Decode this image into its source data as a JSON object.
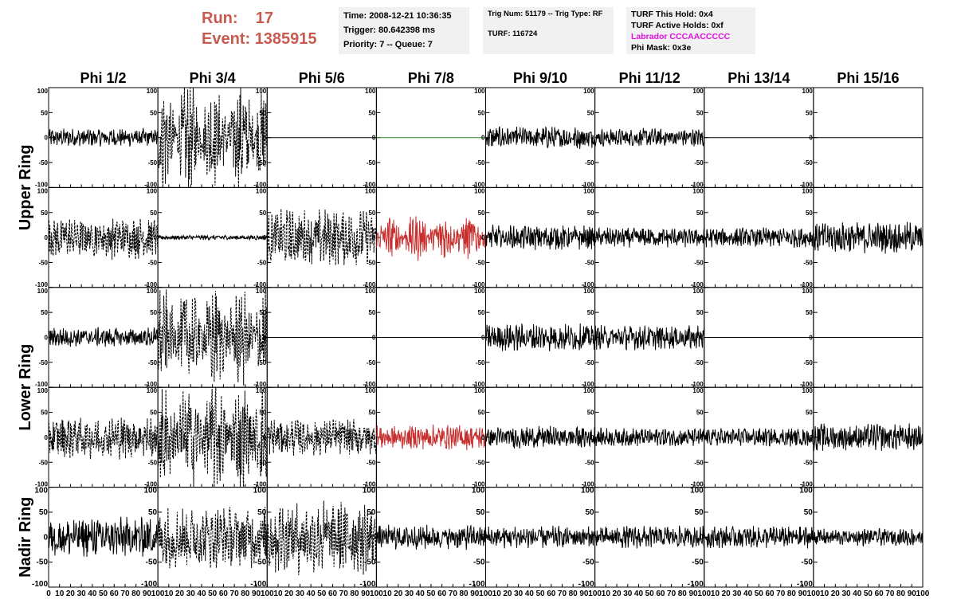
{
  "header": {
    "run_label": "Run:",
    "run_value": "17",
    "event_label": "Event:",
    "event_value": "1385915"
  },
  "info_time": {
    "time": "Time: 2008-12-21 10:36:35",
    "trigger": "Trigger: 80.642398 ms",
    "priority": "Priority: 7 -- Queue: 7"
  },
  "info_trig": {
    "trig": "Trig Num: 51179 -- Trig Type: RF",
    "turf": "TURF: 116724"
  },
  "info_turf": {
    "hold": "TURF This Hold: 0x4",
    "active": "TURF Active Holds: 0xf",
    "labrador": "Labrador CCCAACCCCC",
    "phimask": "Phi Mask: 0x3e"
  },
  "chart_data": {
    "type": "line",
    "columns": [
      "Phi 1/2",
      "Phi 3/4",
      "Phi 5/6",
      "Phi 7/8",
      "Phi 9/10",
      "Phi 11/12",
      "Phi 13/14",
      "Phi 15/16"
    ],
    "row_labels": [
      {
        "label": "Upper Ring",
        "rows": [
          0,
          1
        ]
      },
      {
        "label": "Lower Ring",
        "rows": [
          2,
          3
        ]
      },
      {
        "label": "Nadir Ring",
        "rows": [
          4
        ]
      }
    ],
    "xlim": [
      0,
      100
    ],
    "ylim": [
      -100,
      100
    ],
    "x_tick_labels": [
      "0",
      "10",
      "20",
      "30",
      "40",
      "50",
      "60",
      "70",
      "80",
      "90",
      "100"
    ],
    "y_tick_labels": [
      "100",
      "50",
      "0",
      "-50",
      "-100"
    ],
    "colors": {
      "normal": "#000000",
      "triggered": "#c83030",
      "flat": "#2a8a2a"
    },
    "panels": [
      [
        {
          "style": "solid",
          "color": "normal",
          "amp": 15,
          "mod": "noise"
        },
        {
          "style": "dashed",
          "color": "normal",
          "amp": 90,
          "mod": "burst"
        },
        {
          "style": "flat",
          "color": "normal",
          "amp": 0
        },
        {
          "style": "flat",
          "color": "flat",
          "amp": 0
        },
        {
          "style": "solid",
          "color": "normal",
          "amp": 18,
          "mod": "noise"
        },
        {
          "style": "solid",
          "color": "normal",
          "amp": 15,
          "mod": "noise"
        },
        {
          "style": "flat",
          "color": "normal",
          "amp": 0
        },
        {
          "style": "flat",
          "color": "normal",
          "amp": 0
        }
      ],
      [
        {
          "style": "dashed",
          "color": "normal",
          "amp": 35,
          "mod": "noise"
        },
        {
          "style": "solid",
          "color": "normal",
          "amp": 4,
          "mod": "noise"
        },
        {
          "style": "dashed",
          "color": "normal",
          "amp": 45,
          "mod": "noise"
        },
        {
          "style": "solid",
          "color": "triggered",
          "amp": 40,
          "mod": "burst"
        },
        {
          "style": "solid",
          "color": "normal",
          "amp": 20,
          "mod": "noise"
        },
        {
          "style": "solid",
          "color": "normal",
          "amp": 16,
          "mod": "noise"
        },
        {
          "style": "solid",
          "color": "normal",
          "amp": 16,
          "mod": "noise"
        },
        {
          "style": "solid",
          "color": "normal",
          "amp": 25,
          "mod": "noise"
        }
      ],
      [
        {
          "style": "solid",
          "color": "normal",
          "amp": 16,
          "mod": "noise"
        },
        {
          "style": "dashed",
          "color": "normal",
          "amp": 85,
          "mod": "burst"
        },
        {
          "style": "flat",
          "color": "normal",
          "amp": 0
        },
        {
          "style": "flat",
          "color": "normal",
          "amp": 0
        },
        {
          "style": "solid",
          "color": "normal",
          "amp": 22,
          "mod": "noise"
        },
        {
          "style": "solid",
          "color": "normal",
          "amp": 20,
          "mod": "noise"
        },
        {
          "style": "flat",
          "color": "normal",
          "amp": 0
        },
        {
          "style": "flat",
          "color": "normal",
          "amp": 0
        }
      ],
      [
        {
          "style": "dashed",
          "color": "normal",
          "amp": 35,
          "mod": "noise"
        },
        {
          "style": "dashed",
          "color": "normal",
          "amp": 90,
          "mod": "burst"
        },
        {
          "style": "dashed",
          "color": "normal",
          "amp": 30,
          "mod": "noise"
        },
        {
          "style": "solid",
          "color": "triggered",
          "amp": 20,
          "mod": "noise"
        },
        {
          "style": "solid",
          "color": "normal",
          "amp": 18,
          "mod": "noise"
        },
        {
          "style": "solid",
          "color": "normal",
          "amp": 15,
          "mod": "noise"
        },
        {
          "style": "solid",
          "color": "normal",
          "amp": 15,
          "mod": "noise"
        },
        {
          "style": "solid",
          "color": "normal",
          "amp": 22,
          "mod": "noise"
        }
      ],
      [
        {
          "style": "solid",
          "color": "normal",
          "amp": 32,
          "mod": "noise"
        },
        {
          "style": "dashed",
          "color": "normal",
          "amp": 50,
          "mod": "noise"
        },
        {
          "style": "dashed",
          "color": "normal",
          "amp": 60,
          "mod": "noise"
        },
        {
          "style": "solid",
          "color": "normal",
          "amp": 20,
          "mod": "noise"
        },
        {
          "style": "solid",
          "color": "normal",
          "amp": 18,
          "mod": "noise"
        },
        {
          "style": "solid",
          "color": "normal",
          "amp": 18,
          "mod": "noise"
        },
        {
          "style": "solid",
          "color": "normal",
          "amp": 18,
          "mod": "noise"
        },
        {
          "style": "solid",
          "color": "normal",
          "amp": 14,
          "mod": "noise"
        }
      ]
    ]
  }
}
